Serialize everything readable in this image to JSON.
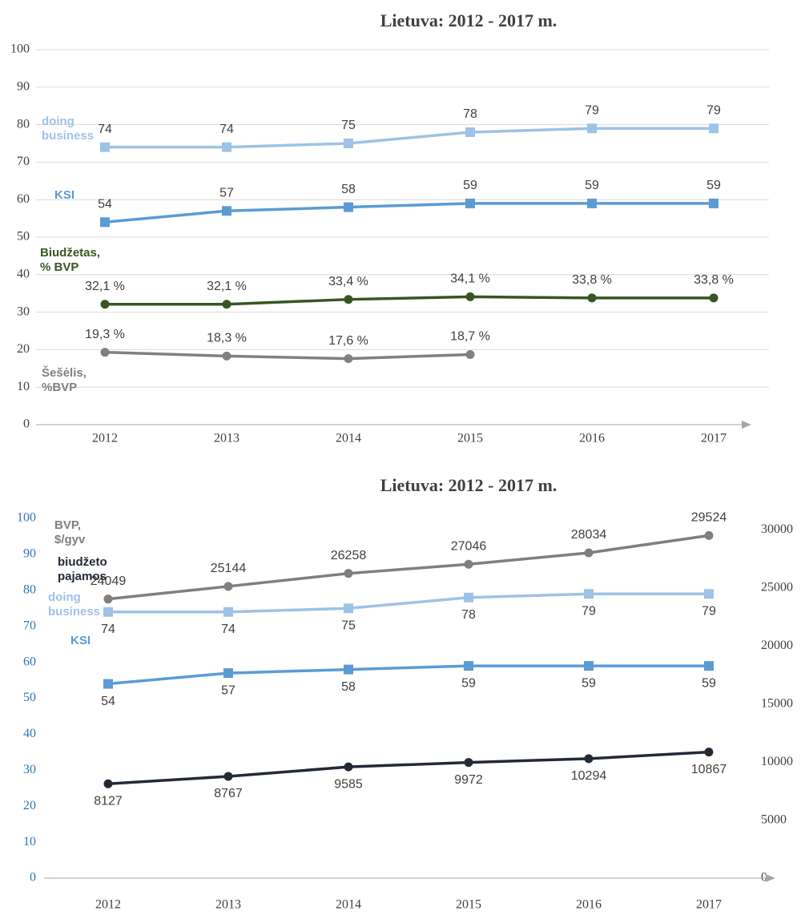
{
  "chart_data": [
    {
      "type": "line",
      "title": "Lietuva: 2012 - 2017 m.",
      "categories": [
        "2012",
        "2013",
        "2014",
        "2015",
        "2016",
        "2017"
      ],
      "ylim": [
        0,
        100
      ],
      "yticks": [
        0,
        10,
        20,
        30,
        40,
        50,
        60,
        70,
        80,
        90,
        100
      ],
      "grid": true,
      "series": [
        {
          "name": "doing business",
          "color": "#9dc3e6",
          "marker": "square",
          "values": [
            74,
            74,
            75,
            78,
            79,
            79
          ]
        },
        {
          "name": "KSI",
          "color": "#5b9bd5",
          "marker": "square",
          "values": [
            54,
            57,
            58,
            59,
            59,
            59
          ]
        },
        {
          "name": "Biudžetas, % BVP",
          "color": "#375623",
          "marker": "circle",
          "values": [
            32.1,
            32.1,
            33.4,
            34.1,
            33.8,
            33.8
          ],
          "value_labels": [
            "32,1 %",
            "32,1 %",
            "33,4 %",
            "34,1 %",
            "33,8 %",
            "33,8 %"
          ]
        },
        {
          "name": "Šešėlis, %BVP",
          "color": "#808080",
          "marker": "circle",
          "values": [
            19.3,
            18.3,
            17.6,
            18.7,
            null,
            null
          ],
          "value_labels": [
            "19,3 %",
            "18,3 %",
            "17,6 %",
            "18,7 %",
            null,
            null
          ]
        }
      ]
    },
    {
      "type": "line",
      "title": "Lietuva: 2012 - 2017 m.",
      "categories": [
        "2012",
        "2013",
        "2014",
        "2015",
        "2016",
        "2017"
      ],
      "ylim": [
        0,
        100
      ],
      "yticks": [
        0,
        10,
        20,
        30,
        40,
        50,
        60,
        70,
        80,
        90,
        100
      ],
      "grid": false,
      "ytick_color": "#2e75b6",
      "y2lim": [
        0,
        31000
      ],
      "y2ticks": [
        0,
        5000,
        10000,
        15000,
        20000,
        25000,
        30000
      ],
      "series": [
        {
          "name": "BVP, $/gyv",
          "color": "#7f7f7f",
          "marker": "circle",
          "axis": "y2",
          "values": [
            24049,
            25144,
            26258,
            27046,
            28034,
            29524
          ]
        },
        {
          "name": "doing business",
          "color": "#9dc3e6",
          "marker": "square",
          "values": [
            74,
            74,
            75,
            78,
            79,
            79
          ]
        },
        {
          "name": "KSI",
          "color": "#5b9bd5",
          "marker": "square",
          "values": [
            54,
            57,
            58,
            59,
            59,
            59
          ]
        },
        {
          "name": "biudžeto pajamos",
          "color": "#222a35",
          "marker": "circle",
          "axis": "y2",
          "values": [
            8127,
            8767,
            9585,
            9972,
            10294,
            10867
          ]
        }
      ]
    }
  ]
}
